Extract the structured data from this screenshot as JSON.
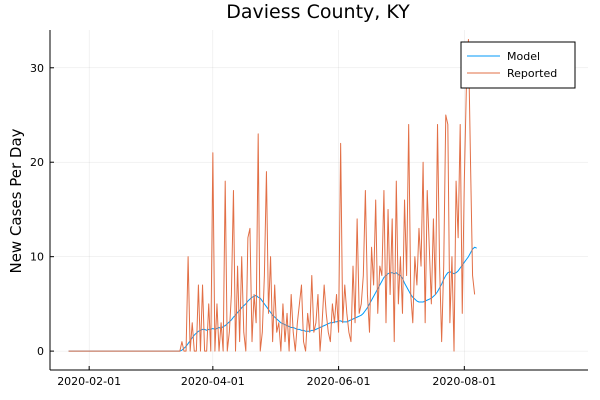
{
  "chart_data": {
    "type": "line",
    "title": "Daviess County, KY",
    "xlabel": "",
    "ylabel": "New Cases Per Day",
    "x_start": "2020-01-22",
    "x_step_days": 1,
    "xlim": [
      "2020-01-13",
      "2020-09-30"
    ],
    "ylim": [
      -2,
      34
    ],
    "x_ticks": [
      "2020-02-01",
      "2020-04-01",
      "2020-06-01",
      "2020-08-01"
    ],
    "y_ticks": [
      0,
      10,
      20,
      30
    ],
    "grid": true,
    "legend_position": "top-right",
    "series": [
      {
        "name": "Model",
        "color": "#009AFA",
        "values": [
          0,
          0,
          0,
          0,
          0,
          0,
          0,
          0,
          0,
          0,
          0,
          0,
          0,
          0,
          0,
          0,
          0,
          0,
          0,
          0,
          0,
          0,
          0,
          0,
          0,
          0,
          0,
          0,
          0,
          0,
          0,
          0,
          0,
          0,
          0,
          0,
          0,
          0,
          0,
          0,
          0,
          0,
          0,
          0,
          0,
          0,
          0,
          0,
          0,
          0,
          0,
          0,
          0,
          0,
          0,
          0.1,
          0.3,
          0.5,
          0.8,
          1.1,
          1.4,
          1.7,
          1.9,
          2.1,
          2.2,
          2.3,
          2.3,
          2.2,
          2.3,
          2.3,
          2.4,
          2.3,
          2.4,
          2.5,
          2.4,
          2.6,
          2.7,
          2.9,
          3.1,
          3.3,
          3.6,
          3.8,
          4.1,
          4.3,
          4.6,
          4.8,
          5.0,
          5.3,
          5.5,
          5.7,
          5.8,
          5.9,
          5.7,
          5.6,
          5.3,
          5.0,
          4.7,
          4.4,
          4.1,
          3.8,
          3.6,
          3.4,
          3.2,
          3.0,
          2.9,
          2.8,
          2.7,
          2.6,
          2.5,
          2.5,
          2.4,
          2.3,
          2.3,
          2.2,
          2.2,
          2.1,
          2.1,
          2.1,
          2.2,
          2.2,
          2.3,
          2.4,
          2.5,
          2.6,
          2.7,
          2.8,
          2.9,
          3.0,
          3.0,
          3.1,
          3.1,
          3.2,
          3.2,
          3.1,
          3.1,
          3.1,
          3.2,
          3.3,
          3.4,
          3.5,
          3.6,
          3.7,
          3.8,
          4.0,
          4.3,
          4.6,
          5.0,
          5.4,
          5.8,
          6.2,
          6.6,
          7.0,
          7.4,
          7.8,
          8.0,
          8.2,
          8.3,
          8.3,
          8.2,
          8.3,
          8.1,
          8.0,
          7.7,
          7.2,
          6.8,
          6.4,
          6.0,
          5.7,
          5.5,
          5.3,
          5.2,
          5.2,
          5.2,
          5.3,
          5.4,
          5.5,
          5.6,
          5.8,
          6.0,
          6.3,
          6.7,
          7.1,
          7.6,
          8.0,
          8.3,
          8.4,
          8.3,
          8.2,
          8.3,
          8.5,
          8.8,
          9.1,
          9.4,
          9.7,
          10.0,
          10.4,
          10.8,
          11.0,
          10.9
        ],
        "line_width": 1
      },
      {
        "name": "Reported",
        "color": "#E26F46",
        "values": [
          0,
          0,
          0,
          0,
          0,
          0,
          0,
          0,
          0,
          0,
          0,
          0,
          0,
          0,
          0,
          0,
          0,
          0,
          0,
          0,
          0,
          0,
          0,
          0,
          0,
          0,
          0,
          0,
          0,
          0,
          0,
          0,
          0,
          0,
          0,
          0,
          0,
          0,
          0,
          0,
          0,
          0,
          0,
          0,
          0,
          0,
          0,
          0,
          0,
          0,
          0,
          0,
          0,
          0,
          0,
          1,
          0,
          0,
          10,
          0,
          3,
          0,
          0,
          7,
          0,
          7,
          0,
          0,
          5,
          0,
          21,
          0,
          5,
          0,
          3,
          0,
          18,
          0,
          2,
          6,
          17,
          0,
          9,
          1,
          10,
          2,
          0,
          12,
          13,
          1,
          6,
          3,
          23,
          0,
          2,
          8,
          19,
          4,
          10,
          1,
          7,
          2,
          3,
          0,
          5,
          1,
          4,
          0,
          6,
          2,
          0,
          3,
          5,
          7,
          1,
          0,
          4,
          2,
          8,
          2,
          3,
          6,
          0,
          3,
          7,
          4,
          2,
          1,
          5,
          3,
          6,
          2,
          22,
          3,
          7,
          4,
          2,
          1,
          9,
          3,
          14,
          4,
          5,
          8,
          17,
          6,
          2,
          11,
          7,
          16,
          4,
          9,
          8,
          17,
          3,
          15,
          6,
          14,
          1,
          18,
          5,
          10,
          4,
          16,
          8,
          24,
          6,
          3,
          10,
          7,
          13,
          9,
          20,
          3,
          17,
          11,
          5,
          14,
          6,
          24,
          9,
          1,
          9,
          25,
          24,
          3,
          10,
          0,
          18,
          12,
          24,
          4,
          18,
          28,
          33,
          20,
          8,
          6
        ],
        "line_width": 1
      }
    ]
  }
}
